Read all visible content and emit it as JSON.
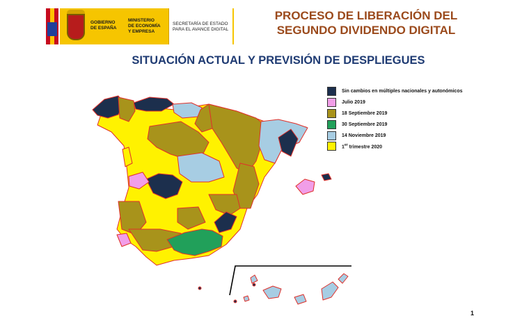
{
  "header": {
    "logo": {
      "government_line1": "GOBIERNO",
      "government_line2": "DE ESPAÑA",
      "ministry_line1": "MINISTERIO",
      "ministry_line2": "DE ECONOMÍA",
      "ministry_line3": "Y EMPRESA",
      "secretary_line1": "SECRETARÍA DE ESTADO",
      "secretary_line2": "PARA EL AVANCE DIGITAL"
    },
    "title_line1": "PROCESO DE LIBERACIÓN DEL",
    "title_line2": "SEGUNDO DIVIDENDO DIGITAL"
  },
  "subtitle": "SITUACIÓN ACTUAL Y PREVISIÓN DE DESPLIEGUES",
  "legend": {
    "items": [
      {
        "label": "Sin cambios en múltiples nacionales y autonómicos",
        "color": "#1c2f4d"
      },
      {
        "label": "Julio 2019",
        "color": "#f19ee8"
      },
      {
        "label": "18 Septiembre 2019",
        "color": "#a8931b"
      },
      {
        "label": "30 Septiembre 2019",
        "color": "#21a05a"
      },
      {
        "label": "14 Noviembre 2019",
        "color": "#a7cde3"
      },
      {
        "label_prefix": "1",
        "label_sup": "er",
        "label_suffix": " trimestre 2020",
        "color": "#fff200"
      }
    ]
  },
  "map_colors": {
    "border": "#e0302a",
    "dark_blue": "#1c2f4d",
    "pink": "#f19ee8",
    "olive": "#a8931b",
    "green": "#21a05a",
    "light_blue": "#a7cde3",
    "yellow": "#fff200"
  },
  "page_number": "1"
}
